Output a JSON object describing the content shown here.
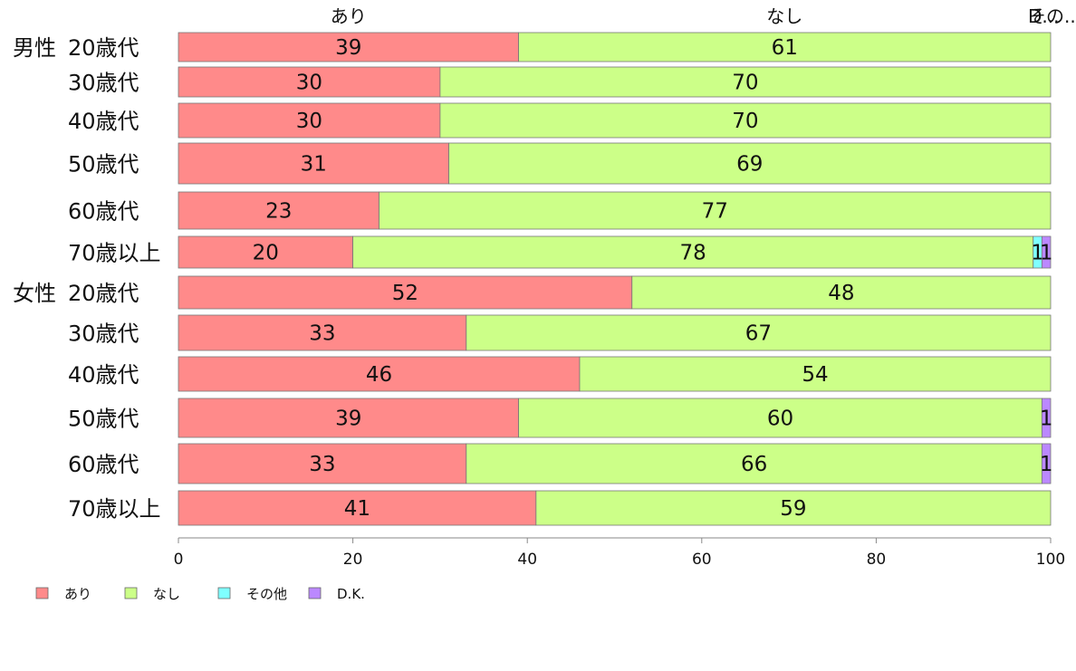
{
  "chart_data": {
    "type": "bar",
    "orientation": "horizontal",
    "stacked": true,
    "xlim": [
      0,
      100
    ],
    "xticks": [
      0,
      20,
      40,
      60,
      80,
      100
    ],
    "grid": false,
    "legend_position": "bottom-left",
    "groups": [
      "男性",
      "",
      "",
      "",
      "",
      "",
      "女性",
      "",
      "",
      "",
      "",
      ""
    ],
    "categories": [
      "20歳代",
      "30歳代",
      "40歳代",
      "50歳代",
      "60歳代",
      "70歳以上",
      "20歳代",
      "30歳代",
      "40歳代",
      "50歳代",
      "60歳代",
      "70歳以上"
    ],
    "series": [
      {
        "name": "あり",
        "color": "#FF8A8A",
        "values": [
          39,
          30,
          30,
          31,
          23,
          20,
          52,
          33,
          46,
          39,
          33,
          41
        ]
      },
      {
        "name": "なし",
        "color": "#CCFF88",
        "values": [
          61,
          70,
          70,
          69,
          77,
          78,
          48,
          67,
          54,
          60,
          66,
          59
        ]
      },
      {
        "name": "その他",
        "color": "#7FFFFF",
        "values": [
          0,
          0,
          0,
          0,
          0,
          1,
          0,
          0,
          0,
          0,
          0,
          0
        ]
      },
      {
        "name": "D.K.",
        "color": "#BB88FF",
        "values": [
          0,
          0,
          0,
          0,
          0,
          1,
          0,
          0,
          0,
          1,
          1,
          0
        ]
      }
    ],
    "top_labels": [
      "あり",
      "なし",
      "その...",
      "D..."
    ]
  }
}
